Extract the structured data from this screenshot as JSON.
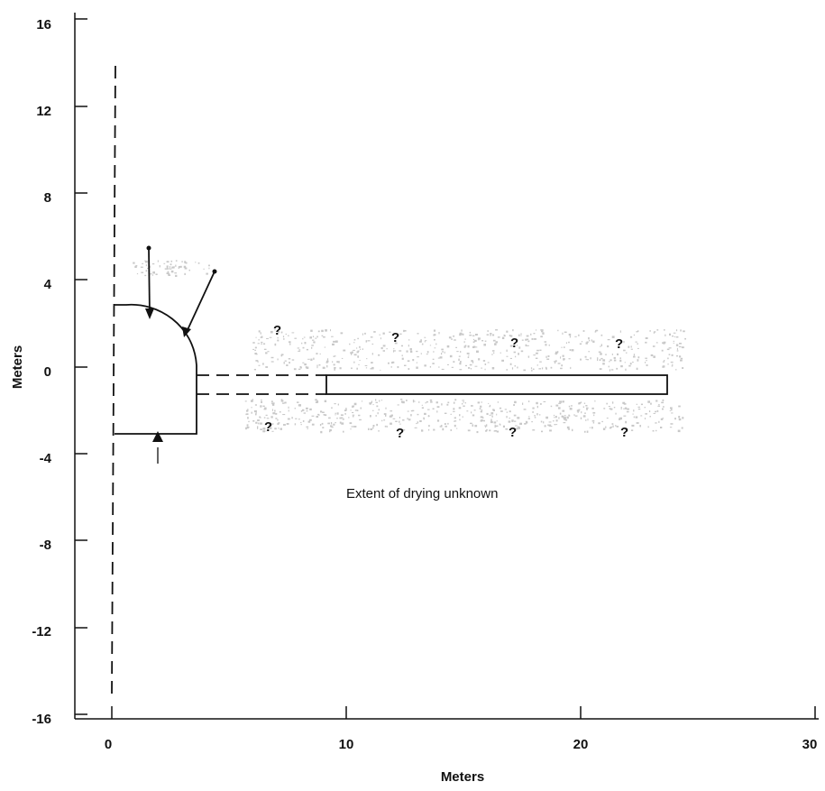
{
  "axes": {
    "x": {
      "title": "Meters",
      "ticks": [
        "0",
        "10",
        "20",
        "30"
      ],
      "range": [
        0,
        30
      ]
    },
    "y": {
      "title": "Meters",
      "ticks": [
        "16",
        "12",
        "8",
        "4",
        "0",
        "-4",
        "-8",
        "-12",
        "-16"
      ],
      "range": [
        -16,
        16
      ]
    }
  },
  "annotation": "Extent of drying unknown",
  "question_marks": [
    "?",
    "?",
    "?",
    "?",
    "?",
    "?",
    "?",
    "?"
  ]
}
